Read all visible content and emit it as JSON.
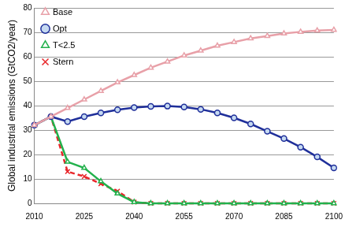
{
  "chart_data": {
    "type": "line",
    "y_label": "Global industrial emissions (GtCO2/year)",
    "x": [
      2010,
      2015,
      2020,
      2025,
      2030,
      2035,
      2040,
      2045,
      2050,
      2055,
      2060,
      2065,
      2070,
      2075,
      2080,
      2085,
      2090,
      2095,
      2100
    ],
    "series": [
      {
        "name": "Base",
        "color": "#e8a0a8",
        "marker": "triangle",
        "line_style": "solid",
        "values": [
          32,
          35.5,
          39,
          42.5,
          46,
          49.5,
          52.5,
          55.5,
          58,
          60.5,
          62.5,
          64.5,
          66,
          67.5,
          68.5,
          69.5,
          70.2,
          70.7,
          71
        ]
      },
      {
        "name": "Opt",
        "color": "#1f2f9a",
        "marker": "circle",
        "line_style": "solid",
        "values": [
          32,
          35.5,
          33.5,
          35.5,
          37,
          38.3,
          39.2,
          39.7,
          39.8,
          39.4,
          38.5,
          37,
          35,
          32.5,
          29.5,
          26.5,
          23,
          19,
          14.5
        ]
      },
      {
        "name": "T<2.5",
        "color": "#22b14c",
        "marker": "triangle",
        "line_style": "solid",
        "values": [
          32,
          35.5,
          17,
          14.5,
          9,
          4,
          0.5,
          0,
          0,
          0,
          0,
          0,
          0,
          0,
          0,
          0,
          0,
          0,
          0
        ]
      },
      {
        "name": "Stern",
        "color": "#e8262a",
        "marker": "cross",
        "line_style": "dashed",
        "values": [
          32,
          35.5,
          13,
          11,
          8,
          5,
          0.5,
          0,
          0,
          0,
          0,
          0,
          0,
          0,
          0,
          0,
          0,
          0,
          0
        ]
      }
    ],
    "xlim": [
      2010,
      2100
    ],
    "xticks": [
      2010,
      2025,
      2040,
      2055,
      2070,
      2085,
      2100
    ],
    "ylim": [
      0,
      80
    ],
    "yticks": [
      0,
      10,
      20,
      30,
      40,
      50,
      60,
      70,
      80
    ],
    "grid": true,
    "legend": "upper left"
  }
}
